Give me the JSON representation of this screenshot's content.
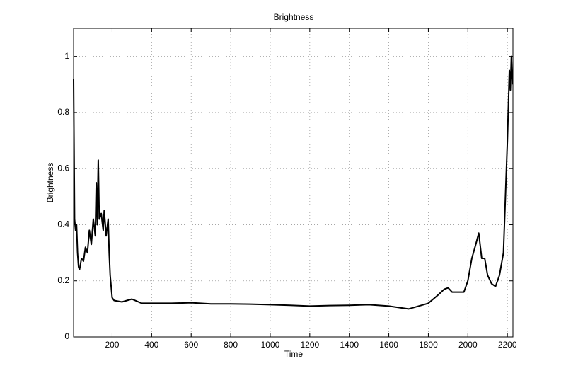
{
  "chart_data": {
    "type": "line",
    "title": "Brightness",
    "x_label": "Time",
    "y_label": "Brightness",
    "x": [
      5,
      10,
      15,
      20,
      25,
      30,
      35,
      45,
      55,
      65,
      75,
      85,
      95,
      105,
      115,
      120,
      125,
      130,
      135,
      145,
      155,
      160,
      170,
      180,
      185,
      190,
      200,
      210,
      250,
      300,
      350,
      400,
      500,
      600,
      700,
      800,
      900,
      1000,
      1100,
      1200,
      1300,
      1400,
      1500,
      1600,
      1700,
      1750,
      1800,
      1850,
      1880,
      1900,
      1920,
      1950,
      1980,
      2000,
      2020,
      2040,
      2055,
      2070,
      2085,
      2100,
      2120,
      2140,
      2160,
      2180,
      2190,
      2200,
      2210,
      2215,
      2220,
      2225
    ],
    "values": [
      0.92,
      0.42,
      0.38,
      0.4,
      0.3,
      0.25,
      0.24,
      0.28,
      0.27,
      0.32,
      0.3,
      0.38,
      0.33,
      0.42,
      0.36,
      0.55,
      0.4,
      0.63,
      0.42,
      0.44,
      0.38,
      0.45,
      0.36,
      0.42,
      0.3,
      0.22,
      0.14,
      0.13,
      0.125,
      0.135,
      0.12,
      0.12,
      0.12,
      0.122,
      0.118,
      0.118,
      0.117,
      0.115,
      0.113,
      0.11,
      0.112,
      0.113,
      0.115,
      0.11,
      0.1,
      0.11,
      0.12,
      0.15,
      0.17,
      0.175,
      0.16,
      0.16,
      0.16,
      0.2,
      0.28,
      0.33,
      0.37,
      0.28,
      0.28,
      0.22,
      0.19,
      0.18,
      0.22,
      0.3,
      0.5,
      0.7,
      0.95,
      0.88,
      1.0,
      0.9
    ],
    "color": "#000000",
    "xlim": [
      5,
      2228
    ],
    "xticks": [
      200,
      400,
      600,
      800,
      1000,
      1200,
      1400,
      1600,
      1800,
      2000,
      2200
    ],
    "ylim": [
      0,
      1.1
    ],
    "yticks": [
      0,
      0.2,
      0.4,
      0.6,
      0.8,
      1
    ],
    "grid": true
  }
}
